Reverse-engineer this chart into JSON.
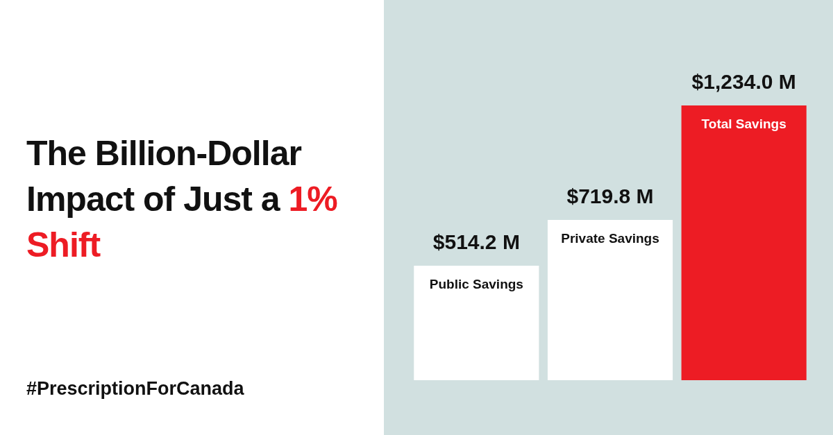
{
  "chart_data": {
    "type": "bar",
    "title": "The Billion-Dollar Impact of Just a 1% Shift",
    "categories": [
      "Public Savings",
      "Private Savings",
      "Total Savings"
    ],
    "values": [
      514.2,
      719.8,
      1234.0
    ],
    "colors": [
      "#ffffff",
      "#ffffff",
      "#ed1c24"
    ],
    "value_labels": [
      "$514.2 M",
      "$719.8 M",
      "$1,234.0 M"
    ],
    "annotations": [
      "#PrescriptionForCanada"
    ]
  }
}
